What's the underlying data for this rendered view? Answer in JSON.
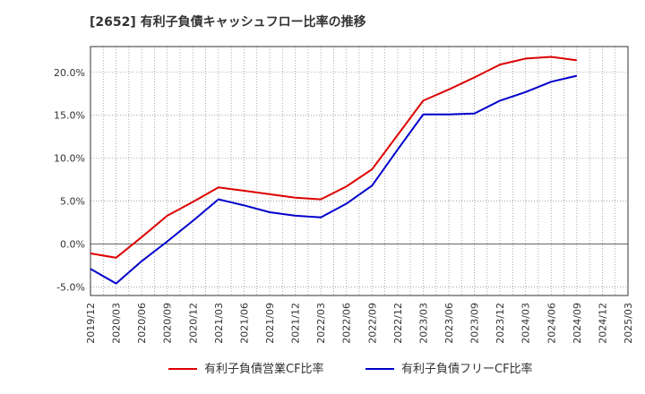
{
  "chart_data": {
    "type": "line",
    "title": "[2652]  有利子負債キャッシュフロー比率の推移",
    "xlabel": "",
    "ylabel": "",
    "ylim": [
      -6,
      23
    ],
    "yticks": [
      -5,
      0,
      5,
      10,
      15,
      20
    ],
    "ytick_labels": [
      "-5.0%",
      "0.0%",
      "5.0%",
      "10.0%",
      "15.0%",
      "20.0%"
    ],
    "x": [
      "2019/12",
      "2020/03",
      "2020/06",
      "2020/09",
      "2020/12",
      "2021/03",
      "2021/06",
      "2021/09",
      "2021/12",
      "2022/03",
      "2022/06",
      "2022/09",
      "2022/12",
      "2023/03",
      "2023/06",
      "2023/09",
      "2023/12",
      "2024/03",
      "2024/06",
      "2024/09",
      "2024/12",
      "2025/03"
    ],
    "grid": true,
    "legend_position": "bottom",
    "series": [
      {
        "name": "有利子負債営業CF比率",
        "color": "#dd0000",
        "values": [
          -1.1,
          -1.6,
          0.8,
          3.3,
          4.9,
          6.6,
          6.2,
          5.8,
          5.4,
          5.2,
          6.7,
          8.7,
          12.7,
          16.7,
          18.0,
          19.4,
          20.9,
          21.6,
          21.8,
          21.4,
          null,
          null
        ]
      },
      {
        "name": "有利子負債フリーCF比率",
        "color": "#0000cc",
        "values": [
          -2.9,
          -4.6,
          -2.0,
          0.3,
          2.7,
          5.2,
          4.5,
          3.7,
          3.3,
          3.1,
          4.7,
          6.8,
          11.0,
          15.1,
          15.1,
          15.2,
          16.7,
          17.7,
          18.9,
          19.6,
          null,
          null
        ]
      }
    ]
  }
}
